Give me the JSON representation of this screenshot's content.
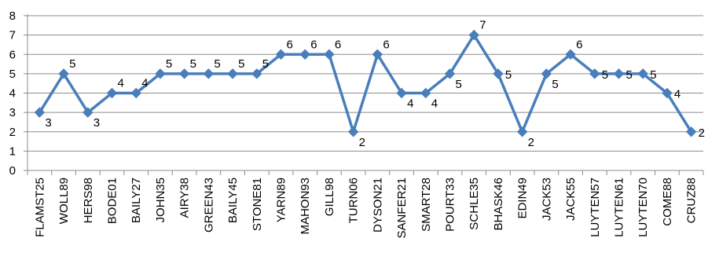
{
  "chart_data": {
    "type": "line",
    "title": "",
    "xlabel": "",
    "ylabel": "",
    "ylim": [
      0,
      8
    ],
    "yticks": [
      0,
      1,
      2,
      3,
      4,
      5,
      6,
      7,
      8
    ],
    "grid": true,
    "legend": "none",
    "colors": {
      "series": "#4a7ebb",
      "grid": "#8c8c8c"
    },
    "categories": [
      "FLAMST25",
      "WOLL89",
      "HERS98",
      "BODE01",
      "BAILY27",
      "JOHN35",
      "AIRY38",
      "GREEN43",
      "BAILY45",
      "STONE81",
      "YARN89",
      "MAHON93",
      "GILL98",
      "TURN06",
      "DYSON21",
      "SANFER21",
      "SMART28",
      "POURT33",
      "SCHLE35",
      "BHASK46",
      "EDIN49",
      "JACK53",
      "JACK55",
      "LUYTEN57",
      "LUYTEN61",
      "LUYTEN70",
      "COME88",
      "CRUZ88"
    ],
    "series": [
      {
        "values": [
          3,
          5,
          3,
          4,
          4,
          5,
          5,
          5,
          5,
          5,
          6,
          6,
          6,
          2,
          6,
          4,
          4,
          5,
          7,
          5,
          2,
          5,
          6,
          5,
          5,
          5,
          4,
          2
        ]
      }
    ],
    "data_labels": [
      {
        "text": "3",
        "pos": "below-right"
      },
      {
        "text": "5",
        "pos": "above-right"
      },
      {
        "text": "3",
        "pos": "below-right"
      },
      {
        "text": "4",
        "pos": "above-right"
      },
      {
        "text": "4",
        "pos": "above-right"
      },
      {
        "text": "5",
        "pos": "above-right"
      },
      {
        "text": "5",
        "pos": "above-right"
      },
      {
        "text": "5",
        "pos": "above-right"
      },
      {
        "text": "5",
        "pos": "above-right"
      },
      {
        "text": "5",
        "pos": "above-right"
      },
      {
        "text": "6",
        "pos": "above-right"
      },
      {
        "text": "6",
        "pos": "above-right"
      },
      {
        "text": "6",
        "pos": "above-right"
      },
      {
        "text": "2",
        "pos": "below-right"
      },
      {
        "text": "6",
        "pos": "above-right"
      },
      {
        "text": "4",
        "pos": "below-right"
      },
      {
        "text": "4",
        "pos": "below-right"
      },
      {
        "text": "5",
        "pos": "below-right"
      },
      {
        "text": "7",
        "pos": "above-right"
      },
      {
        "text": "5",
        "pos": "right"
      },
      {
        "text": "2",
        "pos": "below-right"
      },
      {
        "text": "5",
        "pos": "below-right"
      },
      {
        "text": "6",
        "pos": "above-right"
      },
      {
        "text": "5",
        "pos": "right"
      },
      {
        "text": "5",
        "pos": "right"
      },
      {
        "text": "5",
        "pos": "right"
      },
      {
        "text": "4",
        "pos": "right"
      },
      {
        "text": "2",
        "pos": "right"
      }
    ]
  }
}
